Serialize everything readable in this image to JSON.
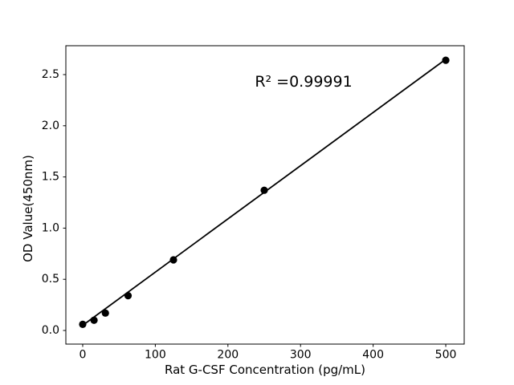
{
  "figure": {
    "background": "#ffffff"
  },
  "chart_data": {
    "type": "scatter",
    "title": "",
    "xlabel": "Rat G-CSF Concentration (pg/mL)",
    "ylabel": "OD Value(450nm)",
    "annotation": "R² =0.99991",
    "x": [
      0,
      15.6,
      31.25,
      62.5,
      125,
      250,
      500
    ],
    "y": [
      0.06,
      0.1,
      0.17,
      0.34,
      0.69,
      1.37,
      2.64
    ],
    "fit_line": {
      "x": [
        0,
        500
      ],
      "y": [
        0.05,
        2.65
      ]
    },
    "x_tick_values": [
      0,
      100,
      200,
      300,
      400,
      500
    ],
    "x_tick_labels": [
      "0",
      "100",
      "200",
      "300",
      "400",
      "500"
    ],
    "y_tick_values": [
      0.0,
      0.5,
      1.0,
      1.5,
      2.0,
      2.5
    ],
    "y_tick_labels": [
      "0.0",
      "0.5",
      "1.0",
      "1.5",
      "2.0",
      "2.5"
    ],
    "xlim": [
      -23.2,
      525.4
    ],
    "ylim": [
      -0.133,
      2.782
    ],
    "marker_color": "#000000",
    "line_color": "#000000",
    "axis_color": "#000000",
    "grid": false,
    "legend": "none"
  }
}
